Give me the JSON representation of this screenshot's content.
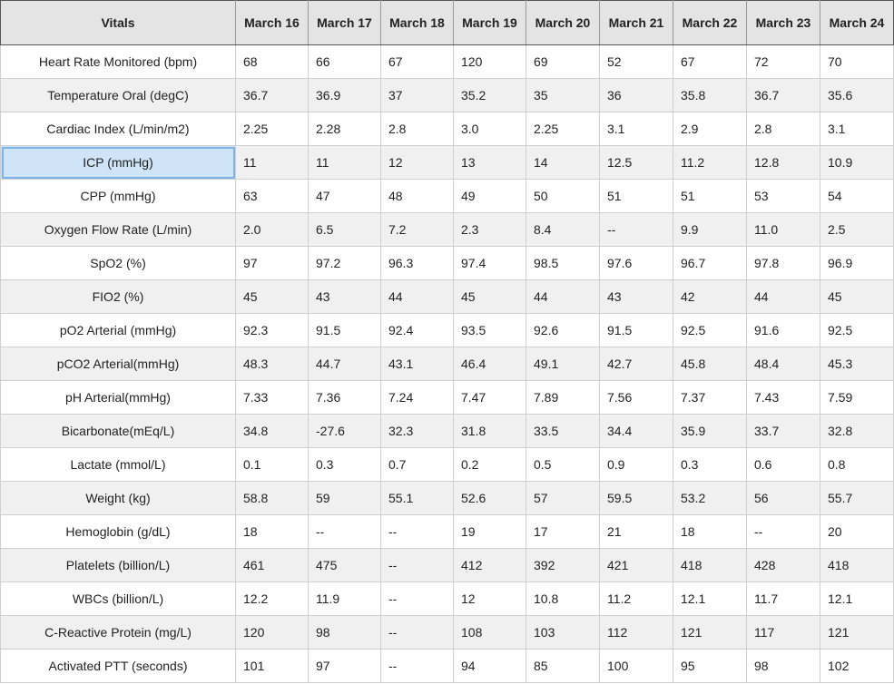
{
  "header": {
    "first_col": "Vitals",
    "dates": [
      "March 16",
      "March 17",
      "March 18",
      "March 19",
      "March 20",
      "March 21",
      "March 22",
      "March 23",
      "March 24"
    ]
  },
  "rows": [
    {
      "label": "Heart Rate Monitored (bpm)",
      "values": [
        "68",
        "66",
        "67",
        "120",
        "69",
        "52",
        "67",
        "72",
        "70"
      ]
    },
    {
      "label": "Temperature Oral (degC)",
      "values": [
        "36.7",
        "36.9",
        "37",
        "35.2",
        "35",
        "36",
        "35.8",
        "36.7",
        "35.6"
      ]
    },
    {
      "label": "Cardiac Index (L/min/m2)",
      "values": [
        "2.25",
        "2.28",
        "2.8",
        "3.0",
        "2.25",
        "3.1",
        "2.9",
        "2.8",
        "3.1"
      ]
    },
    {
      "label": "ICP (mmHg)",
      "values": [
        "11",
        "11",
        "12",
        "13",
        "14",
        "12.5",
        "11.2",
        "12.8",
        "10.9"
      ]
    },
    {
      "label": "CPP (mmHg)",
      "values": [
        "63",
        "47",
        "48",
        "49",
        "50",
        "51",
        "51",
        "53",
        "54"
      ]
    },
    {
      "label": "Oxygen Flow Rate (L/min)",
      "values": [
        "2.0",
        "6.5",
        "7.2",
        "2.3",
        "8.4",
        "--",
        "9.9",
        "11.0",
        "2.5"
      ]
    },
    {
      "label": "SpO2 (%)",
      "values": [
        "97",
        "97.2",
        "96.3",
        "97.4",
        "98.5",
        "97.6",
        "96.7",
        "97.8",
        "96.9"
      ]
    },
    {
      "label": "FIO2 (%)",
      "values": [
        "45",
        "43",
        "44",
        "45",
        "44",
        "43",
        "42",
        "44",
        "45"
      ]
    },
    {
      "label": "pO2 Arterial (mmHg)",
      "values": [
        "92.3",
        "91.5",
        "92.4",
        "93.5",
        "92.6",
        "91.5",
        "92.5",
        "91.6",
        "92.5"
      ]
    },
    {
      "label": "pCO2 Arterial(mmHg)",
      "values": [
        "48.3",
        "44.7",
        "43.1",
        "46.4",
        "49.1",
        "42.7",
        "45.8",
        "48.4",
        "45.3"
      ]
    },
    {
      "label": "pH Arterial(mmHg)",
      "values": [
        "7.33",
        "7.36",
        "7.24",
        "7.47",
        "7.89",
        "7.56",
        "7.37",
        "7.43",
        "7.59"
      ]
    },
    {
      "label": "Bicarbonate(mEq/L)",
      "values": [
        "34.8",
        "-27.6",
        "32.3",
        "31.8",
        "33.5",
        "34.4",
        "35.9",
        "33.7",
        "32.8"
      ]
    },
    {
      "label": "Lactate (mmol/L)",
      "values": [
        "0.1",
        "0.3",
        "0.7",
        "0.2",
        "0.5",
        "0.9",
        "0.3",
        "0.6",
        "0.8"
      ]
    },
    {
      "label": "Weight (kg)",
      "values": [
        "58.8",
        "59",
        "55.1",
        "52.6",
        "57",
        "59.5",
        "53.2",
        "56",
        "55.7"
      ]
    },
    {
      "label": "Hemoglobin (g/dL)",
      "values": [
        "18",
        "--",
        "--",
        "19",
        "17",
        "21",
        "18",
        "--",
        "20"
      ]
    },
    {
      "label": "Platelets (billion/L)",
      "values": [
        "461",
        "475",
        "--",
        "412",
        "392",
        "421",
        "418",
        "428",
        "418"
      ]
    },
    {
      "label": "WBCs (billion/L)",
      "values": [
        "12.2",
        "11.9",
        "--",
        "12",
        "10.8",
        "11.2",
        "12.1",
        "11.7",
        "12.1"
      ]
    },
    {
      "label": "C-Reactive Protein (mg/L)",
      "values": [
        "120",
        "98",
        "--",
        "108",
        "103",
        "112",
        "121",
        "117",
        "121"
      ]
    },
    {
      "label": "Activated PTT (seconds)",
      "values": [
        "101",
        "97",
        "--",
        "94",
        "85",
        "100",
        "95",
        "98",
        "102"
      ]
    }
  ],
  "selected_cell": "ICP (mmHg)",
  "colors": {
    "header_bg": "#e4e4e4",
    "row_alt_bg": "#f0f0f0",
    "selected_bg": "#cfe4f7",
    "selected_border": "#7fb3e6"
  }
}
